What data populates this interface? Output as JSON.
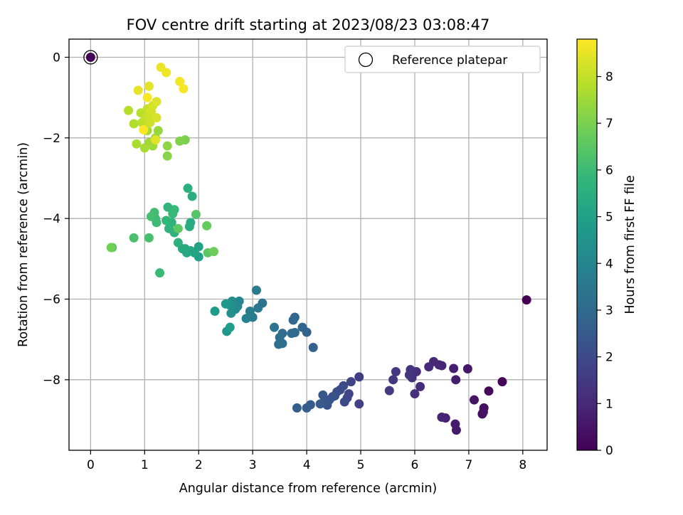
{
  "chart_data": {
    "type": "scatter",
    "title": "FOV centre drift starting at 2023/08/23 03:08:47",
    "xlabel": "Angular distance from reference (arcmin)",
    "ylabel": "Rotation from reference (arcmin)",
    "xlim": [
      -0.4,
      8.45
    ],
    "ylim": [
      -9.75,
      0.45
    ],
    "xticks": [
      0,
      1,
      2,
      3,
      4,
      5,
      6,
      7,
      8
    ],
    "yticks": [
      0,
      -2,
      -4,
      -6,
      -8
    ],
    "ytick_labels": [
      "0",
      "−2",
      "−4",
      "−6",
      "−8"
    ],
    "grid": true,
    "legend": {
      "position": "top-right",
      "entries": [
        "Reference platepar"
      ]
    },
    "reference_point": {
      "x": 0,
      "y": 0,
      "hours": 0
    },
    "colorbar": {
      "label": "Hours from first FF file",
      "range": [
        0,
        8.8
      ],
      "ticks": [
        0,
        1,
        2,
        3,
        4,
        5,
        6,
        7,
        8
      ],
      "colormap": "viridis"
    },
    "colormap_stops": [
      "#440154",
      "#482878",
      "#3e4989",
      "#31688e",
      "#26828e",
      "#1f9e89",
      "#35b779",
      "#6ece58",
      "#b5de2b",
      "#fde725"
    ],
    "series": [
      {
        "points": [
          [
            8.07,
            -6.02,
            0.0
          ],
          [
            7.62,
            -8.05,
            0.1
          ],
          [
            7.37,
            -8.28,
            0.2
          ],
          [
            7.28,
            -8.7,
            0.3
          ],
          [
            7.25,
            -8.85,
            0.35
          ],
          [
            7.27,
            -8.8,
            0.4
          ],
          [
            7.1,
            -8.5,
            0.5
          ],
          [
            6.98,
            -7.73,
            0.55
          ],
          [
            6.77,
            -9.25,
            0.6
          ],
          [
            6.75,
            -9.1,
            0.65
          ],
          [
            6.76,
            -8.0,
            0.7
          ],
          [
            6.72,
            -7.72,
            0.75
          ],
          [
            6.57,
            -8.95,
            0.8
          ],
          [
            6.5,
            -8.93,
            0.85
          ],
          [
            6.5,
            -7.65,
            0.9
          ],
          [
            6.45,
            -7.63,
            0.95
          ],
          [
            6.35,
            -7.55,
            1.0
          ],
          [
            6.26,
            -7.68,
            1.05
          ],
          [
            6.1,
            -8.17,
            1.1
          ],
          [
            6.03,
            -7.8,
            1.15
          ],
          [
            6.0,
            -8.35,
            1.2
          ],
          [
            5.95,
            -7.95,
            1.25
          ],
          [
            5.92,
            -7.75,
            1.3
          ],
          [
            5.9,
            -7.88,
            1.35
          ],
          [
            5.65,
            -7.8,
            1.4
          ],
          [
            5.6,
            -8.0,
            1.45
          ],
          [
            5.53,
            -8.27,
            1.5
          ],
          [
            4.97,
            -7.93,
            1.6
          ],
          [
            4.97,
            -8.6,
            1.7
          ],
          [
            4.82,
            -8.05,
            1.8
          ],
          [
            4.78,
            -8.35,
            1.85
          ],
          [
            4.75,
            -8.45,
            1.9
          ],
          [
            4.7,
            -8.55,
            1.95
          ],
          [
            4.68,
            -8.15,
            2.0
          ],
          [
            4.62,
            -8.25,
            2.05
          ],
          [
            4.56,
            -8.3,
            2.1
          ],
          [
            4.52,
            -8.4,
            2.15
          ],
          [
            4.48,
            -8.42,
            2.2
          ],
          [
            4.42,
            -8.5,
            2.25
          ],
          [
            4.38,
            -8.63,
            2.3
          ],
          [
            4.32,
            -8.55,
            2.35
          ],
          [
            4.3,
            -8.38,
            2.4
          ],
          [
            4.25,
            -8.6,
            2.45
          ],
          [
            4.07,
            -8.62,
            2.5
          ],
          [
            4.0,
            -8.7,
            2.55
          ],
          [
            3.82,
            -8.7,
            2.6
          ],
          [
            4.12,
            -7.2,
            2.7
          ],
          [
            4.0,
            -6.82,
            2.8
          ],
          [
            3.92,
            -6.7,
            2.85
          ],
          [
            3.78,
            -6.45,
            2.9
          ],
          [
            3.75,
            -6.52,
            2.95
          ],
          [
            3.72,
            -6.85,
            3.0
          ],
          [
            3.78,
            -6.83,
            3.05
          ],
          [
            3.55,
            -6.85,
            3.1
          ],
          [
            3.55,
            -7.1,
            3.15
          ],
          [
            3.5,
            -6.95,
            3.2
          ],
          [
            3.48,
            -7.12,
            3.25
          ],
          [
            3.4,
            -6.7,
            3.3
          ],
          [
            3.18,
            -6.1,
            3.4
          ],
          [
            3.1,
            -6.22,
            3.5
          ],
          [
            3.07,
            -5.78,
            3.6
          ],
          [
            3.0,
            -6.45,
            3.7
          ],
          [
            2.95,
            -6.3,
            3.8
          ],
          [
            2.88,
            -6.48,
            3.9
          ],
          [
            2.75,
            -6.05,
            4.0
          ],
          [
            2.72,
            -6.18,
            4.1
          ],
          [
            2.68,
            -6.25,
            4.2
          ],
          [
            2.62,
            -6.05,
            4.3
          ],
          [
            2.6,
            -6.35,
            4.4
          ],
          [
            2.58,
            -6.15,
            4.5
          ],
          [
            2.52,
            -6.8,
            4.6
          ],
          [
            2.5,
            -6.12,
            4.7
          ],
          [
            2.3,
            -6.3,
            4.8
          ],
          [
            2.58,
            -6.7,
            4.9
          ],
          [
            2.0,
            -4.95,
            5.0
          ],
          [
            2.0,
            -4.7,
            5.05
          ],
          [
            1.92,
            -4.85,
            5.1
          ],
          [
            1.85,
            -4.8,
            5.15
          ],
          [
            1.78,
            -4.85,
            5.2
          ],
          [
            1.7,
            -4.75,
            5.25
          ],
          [
            1.75,
            -4.75,
            5.3
          ],
          [
            1.83,
            -4.2,
            5.35
          ],
          [
            1.85,
            -4.1,
            5.4
          ],
          [
            1.88,
            -3.45,
            5.45
          ],
          [
            1.8,
            -3.25,
            5.5
          ],
          [
            1.62,
            -4.6,
            5.55
          ],
          [
            1.55,
            -4.35,
            5.6
          ],
          [
            1.5,
            -4.1,
            5.65
          ],
          [
            1.45,
            -4.25,
            5.7
          ],
          [
            1.43,
            -3.72,
            5.75
          ],
          [
            1.4,
            -4.05,
            5.8
          ],
          [
            1.55,
            -3.78,
            5.85
          ],
          [
            1.52,
            -3.88,
            5.9
          ],
          [
            1.28,
            -5.35,
            5.95
          ],
          [
            1.22,
            -4.1,
            6.0
          ],
          [
            1.2,
            -4.0,
            6.05
          ],
          [
            1.18,
            -3.85,
            6.1
          ],
          [
            1.12,
            -3.95,
            6.15
          ],
          [
            1.08,
            -4.48,
            6.2
          ],
          [
            0.8,
            -4.48,
            6.25
          ],
          [
            0.4,
            -4.72,
            6.3
          ],
          [
            1.95,
            -3.9,
            6.4
          ],
          [
            2.17,
            -4.85,
            6.5
          ],
          [
            1.62,
            -4.25,
            6.55
          ],
          [
            2.15,
            -4.18,
            6.7
          ],
          [
            2.28,
            -4.82,
            6.8
          ],
          [
            0.38,
            -4.72,
            6.9
          ],
          [
            1.75,
            -2.05,
            7.0
          ],
          [
            1.65,
            -2.08,
            7.1
          ],
          [
            1.42,
            -2.45,
            7.2
          ],
          [
            1.42,
            -2.2,
            7.3
          ],
          [
            1.25,
            -1.82,
            7.4
          ],
          [
            1.2,
            -2.0,
            7.45
          ],
          [
            1.15,
            -2.2,
            7.5
          ],
          [
            1.08,
            -2.12,
            7.55
          ],
          [
            1.05,
            -1.82,
            7.6
          ],
          [
            1.0,
            -2.25,
            7.65
          ],
          [
            0.85,
            -2.15,
            7.7
          ],
          [
            0.8,
            -1.65,
            7.75
          ],
          [
            0.7,
            -1.32,
            7.8
          ],
          [
            0.93,
            -1.38,
            7.85
          ],
          [
            0.95,
            -1.62,
            7.9
          ],
          [
            1.0,
            -1.72,
            7.95
          ],
          [
            1.02,
            -1.52,
            8.0
          ],
          [
            1.05,
            -1.28,
            8.05
          ],
          [
            1.08,
            -1.45,
            8.1
          ],
          [
            1.1,
            -1.62,
            8.15
          ],
          [
            1.12,
            -1.35,
            8.2
          ],
          [
            1.15,
            -1.2,
            8.25
          ],
          [
            1.22,
            -1.5,
            8.3
          ],
          [
            1.22,
            -1.1,
            8.35
          ],
          [
            1.2,
            -2.05,
            8.4
          ],
          [
            1.08,
            -0.72,
            8.45
          ],
          [
            0.88,
            -0.82,
            8.5
          ],
          [
            1.3,
            -0.25,
            8.55
          ],
          [
            1.4,
            -0.38,
            8.6
          ],
          [
            1.65,
            -0.6,
            8.65
          ],
          [
            1.72,
            -0.78,
            8.7
          ],
          [
            1.05,
            -1.0,
            8.75
          ],
          [
            0.98,
            -1.8,
            8.8
          ]
        ]
      }
    ]
  }
}
